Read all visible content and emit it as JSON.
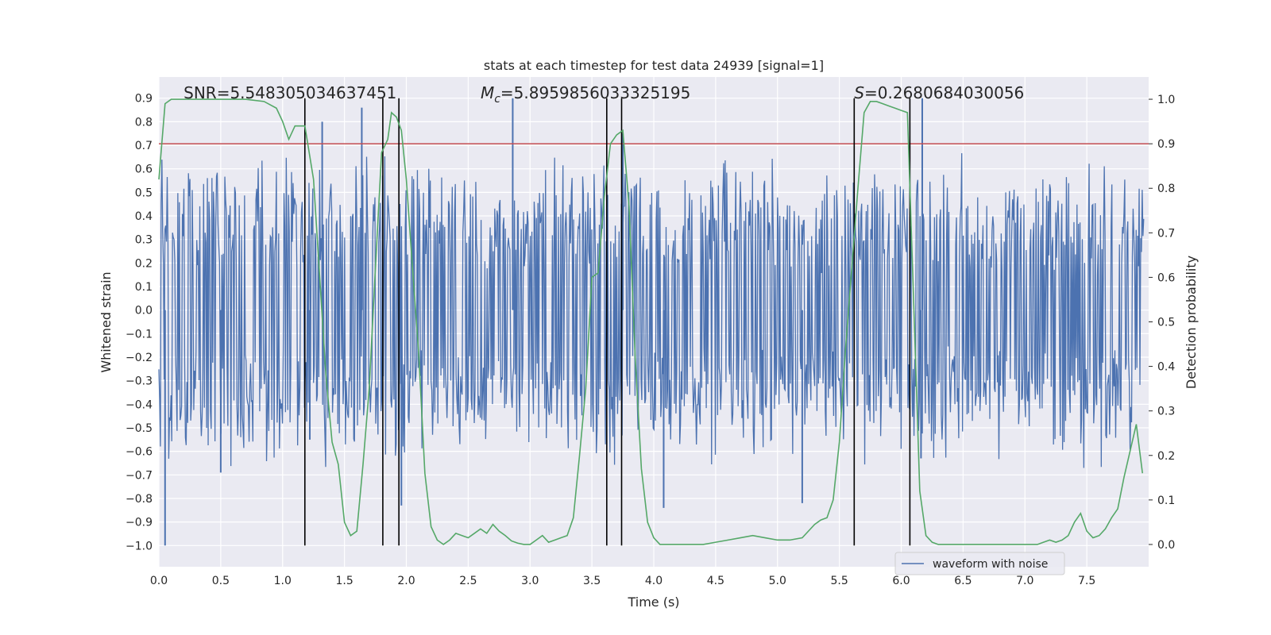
{
  "chart_data": {
    "type": "line",
    "title": "stats at each timestep for test data 24939 [signal=1]",
    "xlabel": "Time (s)",
    "ylabel_left": "Whitened strain",
    "ylabel_right": "Detection probability",
    "xlim": [
      0.0,
      8.0
    ],
    "ylim_left": [
      -1.09,
      0.99
    ],
    "ylim_right": [
      -0.05,
      1.05
    ],
    "xticks": [
      0.0,
      0.5,
      1.0,
      1.5,
      2.0,
      2.5,
      3.0,
      3.5,
      4.0,
      4.5,
      5.0,
      5.5,
      6.0,
      6.5,
      7.0,
      7.5
    ],
    "xtick_labels": [
      "0.0",
      "0.5",
      "1.0",
      "1.5",
      "2.0",
      "2.5",
      "3.0",
      "3.5",
      "4.0",
      "4.5",
      "5.0",
      "5.5",
      "6.0",
      "6.5",
      "7.0",
      "7.5"
    ],
    "yticks_left": [
      0.9,
      0.8,
      0.7,
      0.6,
      0.5,
      0.4,
      0.3,
      0.2,
      0.1,
      0.0,
      -0.1,
      -0.2,
      -0.3,
      -0.4,
      -0.5,
      -0.6,
      -0.7,
      -0.8,
      -0.9,
      -1.0
    ],
    "ytick_labels_left": [
      "0.9",
      "0.8",
      "0.7",
      "0.6",
      "0.5",
      "0.4",
      "0.3",
      "0.2",
      "0.1",
      "0.0",
      "−0.1",
      "−0.2",
      "−0.3",
      "−0.4",
      "−0.5",
      "−0.6",
      "−0.7",
      "−0.8",
      "−0.9",
      "−1.0"
    ],
    "yticks_right": [
      1.0,
      0.9,
      0.8,
      0.7,
      0.6,
      0.5,
      0.4,
      0.3,
      0.2,
      0.1,
      0.0
    ],
    "ytick_labels_right": [
      "1.0",
      "0.9",
      "0.8",
      "0.7",
      "0.6",
      "0.5",
      "0.4",
      "0.3",
      "0.2",
      "0.1",
      "0.0"
    ],
    "grid": true,
    "threshold": 0.9,
    "annotations": [
      {
        "name": "snr-annotation",
        "text": "SNR=5.548305034637451",
        "x": 0.2
      },
      {
        "name": "chirp-mass-annotation",
        "prefix": "M",
        "subscript": "c",
        "suffix": "=5.8959856033325195",
        "x": 2.6
      },
      {
        "name": "score-annotation",
        "prefix": "S",
        "suffix": "=0.2680684030056",
        "x": 5.62
      }
    ],
    "vertical_markers": [
      1.18,
      1.81,
      1.94,
      3.62,
      3.74,
      5.62,
      6.07
    ],
    "series": [
      {
        "name": "waveform with noise",
        "axis": "left",
        "kind": "noise-strain",
        "samples": 1300,
        "envelope": 0.44,
        "spikes": [
          {
            "x": 0.05,
            "y": -1.0
          },
          {
            "x": 1.32,
            "y": 0.8
          },
          {
            "x": 1.64,
            "y": 0.86
          },
          {
            "x": 1.96,
            "y": -0.83
          },
          {
            "x": 2.86,
            "y": 0.9
          },
          {
            "x": 3.75,
            "y": 0.75
          },
          {
            "x": 4.08,
            "y": -0.84
          },
          {
            "x": 5.2,
            "y": -0.82
          },
          {
            "x": 6.17,
            "y": 0.9
          },
          {
            "x": 6.16,
            "y": -0.63
          },
          {
            "x": 1.22,
            "y": -0.55
          },
          {
            "x": 0.5,
            "y": -0.69
          }
        ],
        "color": "#4c72b0",
        "in_legend": true
      },
      {
        "name": "detection probability",
        "axis": "right",
        "color": "#55a868",
        "in_legend": false,
        "x": [
          0.0,
          0.05,
          0.1,
          0.2,
          0.3,
          0.5,
          0.7,
          0.85,
          0.95,
          1.0,
          1.05,
          1.1,
          1.18,
          1.25,
          1.3,
          1.35,
          1.4,
          1.45,
          1.5,
          1.55,
          1.6,
          1.65,
          1.7,
          1.75,
          1.8,
          1.85,
          1.88,
          1.92,
          1.96,
          2.0,
          2.05,
          2.1,
          2.15,
          2.2,
          2.25,
          2.3,
          2.35,
          2.4,
          2.45,
          2.5,
          2.55,
          2.6,
          2.65,
          2.7,
          2.75,
          2.8,
          2.85,
          2.9,
          2.95,
          3.0,
          3.05,
          3.1,
          3.15,
          3.2,
          3.25,
          3.3,
          3.35,
          3.4,
          3.45,
          3.5,
          3.55,
          3.6,
          3.65,
          3.7,
          3.75,
          3.8,
          3.85,
          3.9,
          3.95,
          4.0,
          4.05,
          4.1,
          4.2,
          4.3,
          4.4,
          4.5,
          4.6,
          4.7,
          4.8,
          4.9,
          5.0,
          5.1,
          5.2,
          5.25,
          5.3,
          5.35,
          5.4,
          5.45,
          5.5,
          5.55,
          5.6,
          5.65,
          5.7,
          5.75,
          5.8,
          5.85,
          5.9,
          5.95,
          6.0,
          6.05,
          6.1,
          6.15,
          6.2,
          6.25,
          6.3,
          6.35,
          6.4,
          6.5,
          6.6,
          6.7,
          6.8,
          6.9,
          7.0,
          7.05,
          7.1,
          7.15,
          7.2,
          7.25,
          7.3,
          7.35,
          7.4,
          7.45,
          7.5,
          7.55,
          7.6,
          7.65,
          7.7,
          7.75,
          7.8,
          7.85,
          7.9,
          7.95
        ],
        "values": [
          0.82,
          0.99,
          1.0,
          1.0,
          1.0,
          1.0,
          1.0,
          0.995,
          0.98,
          0.95,
          0.91,
          0.94,
          0.94,
          0.82,
          0.6,
          0.38,
          0.23,
          0.18,
          0.05,
          0.02,
          0.03,
          0.18,
          0.35,
          0.62,
          0.88,
          0.91,
          0.97,
          0.96,
          0.93,
          0.82,
          0.62,
          0.43,
          0.16,
          0.04,
          0.01,
          0.0,
          0.01,
          0.025,
          0.02,
          0.015,
          0.025,
          0.035,
          0.025,
          0.045,
          0.03,
          0.02,
          0.008,
          0.003,
          0.0,
          0.0,
          0.01,
          0.02,
          0.005,
          0.01,
          0.015,
          0.02,
          0.06,
          0.2,
          0.35,
          0.6,
          0.61,
          0.78,
          0.9,
          0.92,
          0.93,
          0.76,
          0.42,
          0.17,
          0.05,
          0.015,
          0.0,
          0.0,
          0.0,
          0.0,
          0.0,
          0.005,
          0.01,
          0.015,
          0.02,
          0.015,
          0.01,
          0.01,
          0.015,
          0.03,
          0.045,
          0.055,
          0.06,
          0.1,
          0.23,
          0.44,
          0.62,
          0.8,
          0.97,
          0.995,
          0.995,
          0.99,
          0.985,
          0.98,
          0.975,
          0.97,
          0.55,
          0.12,
          0.02,
          0.005,
          0.0,
          0.0,
          0.0,
          0.0,
          0.0,
          0.0,
          0.0,
          0.0,
          0.0,
          0.0,
          0.0,
          0.005,
          0.01,
          0.005,
          0.01,
          0.02,
          0.05,
          0.07,
          0.03,
          0.015,
          0.02,
          0.035,
          0.06,
          0.08,
          0.15,
          0.21,
          0.27,
          0.16
        ],
        "values_note": "probabilities on right axis"
      }
    ],
    "legend": {
      "location": "bottom-center-right",
      "entries": [
        "waveform with noise"
      ]
    },
    "colors": {
      "background": "#eaeaf2",
      "grid": "#ffffff",
      "strain": "#4c72b0",
      "probability": "#55a868",
      "threshold": "#c44e52",
      "marker": "#000000"
    }
  }
}
